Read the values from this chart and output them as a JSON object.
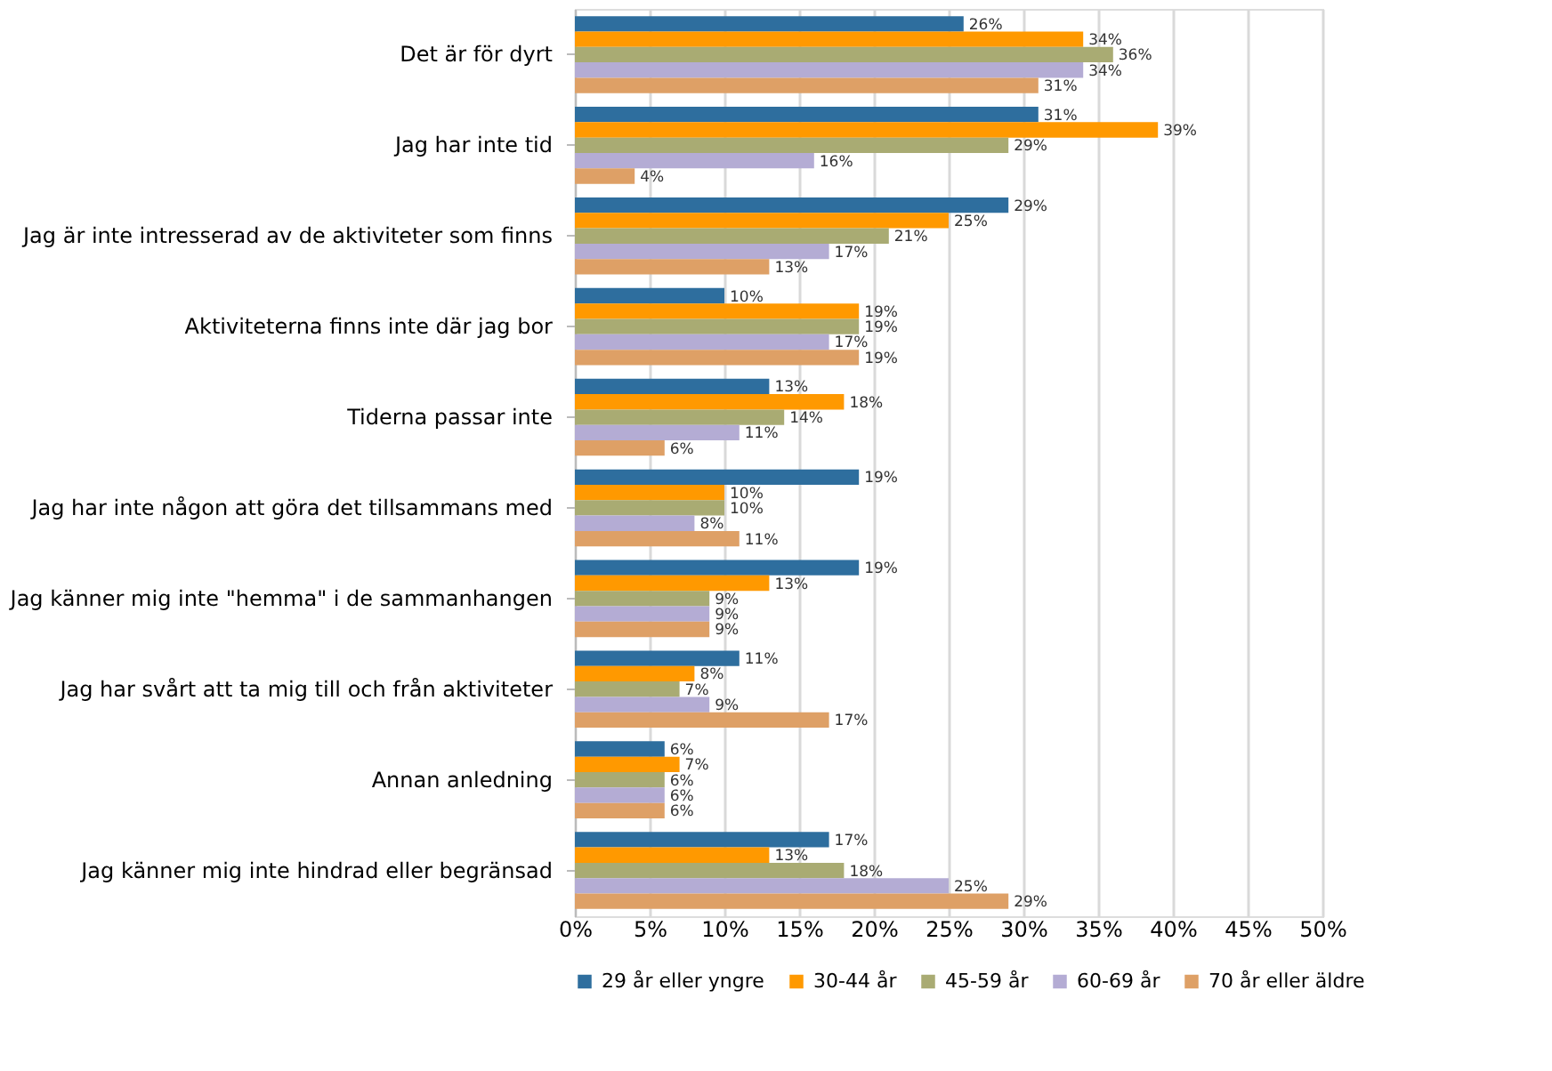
{
  "chart_data": {
    "type": "bar",
    "orientation": "horizontal",
    "categories": [
      "Det är för dyrt",
      "Jag har inte tid",
      "Jag är inte intresserad av de aktiviteter som finns",
      "Aktiviteterna finns inte där jag bor",
      "Tiderna passar inte",
      "Jag har inte någon att göra det tillsammans med",
      "Jag känner mig inte \"hemma\" i de sammanhangen",
      "Jag har svårt att ta mig till och från aktiviteter",
      "Annan anledning",
      "Jag känner mig inte hindrad eller begränsad"
    ],
    "series": [
      {
        "name": "29 år eller yngre",
        "color": "#2e6e9e",
        "values": [
          26,
          31,
          29,
          10,
          13,
          19,
          19,
          11,
          6,
          17
        ],
        "value_labels": [
          "26%",
          "31%",
          "29%",
          "10%",
          "13%",
          "19%",
          "19%",
          "11%",
          "6%",
          "17%"
        ]
      },
      {
        "name": "30-44 år",
        "color": "#ff9900",
        "values": [
          34,
          39,
          25,
          19,
          18,
          10,
          13,
          8,
          7,
          13
        ],
        "value_labels": [
          "34%",
          "39%",
          "25%",
          "19%",
          "18%",
          "10%",
          "13%",
          "8%",
          "7%",
          "13%"
        ]
      },
      {
        "name": "45-59 år",
        "color": "#a9ab73",
        "values": [
          36,
          29,
          21,
          19,
          14,
          10,
          9,
          7,
          6,
          18
        ],
        "value_labels": [
          "36%",
          "29%",
          "21%",
          "19%",
          "14%",
          "10%",
          "9%",
          "7%",
          "6%",
          "18%"
        ]
      },
      {
        "name": "60-69 år",
        "color": "#b4acd4",
        "values": [
          34,
          16,
          17,
          17,
          11,
          8,
          9,
          9,
          6,
          25
        ],
        "value_labels": [
          "34%",
          "16%",
          "17%",
          "17%",
          "11%",
          "8%",
          "9%",
          "9%",
          "6%",
          "25%"
        ]
      },
      {
        "name": "70 år eller äldre",
        "color": "#dea066",
        "values": [
          31,
          4,
          13,
          19,
          6,
          11,
          9,
          17,
          6,
          29
        ],
        "value_labels": [
          "31%",
          "4%",
          "13%",
          "19%",
          "6%",
          "11%",
          "9%",
          "17%",
          "6%",
          "29%"
        ]
      }
    ],
    "xlim": [
      0,
      50
    ],
    "xticks": [
      {
        "value": 0,
        "label": "0%"
      },
      {
        "value": 5,
        "label": "5%"
      },
      {
        "value": 10,
        "label": "10%"
      },
      {
        "value": 15,
        "label": "15%"
      },
      {
        "value": 20,
        "label": "20%"
      },
      {
        "value": 25,
        "label": "25%"
      },
      {
        "value": 30,
        "label": "30%"
      },
      {
        "value": 35,
        "label": "35%"
      },
      {
        "value": 40,
        "label": "40%"
      },
      {
        "value": 45,
        "label": "45%"
      },
      {
        "value": 50,
        "label": "50%"
      }
    ],
    "grid": "x",
    "legend": "bottom"
  }
}
